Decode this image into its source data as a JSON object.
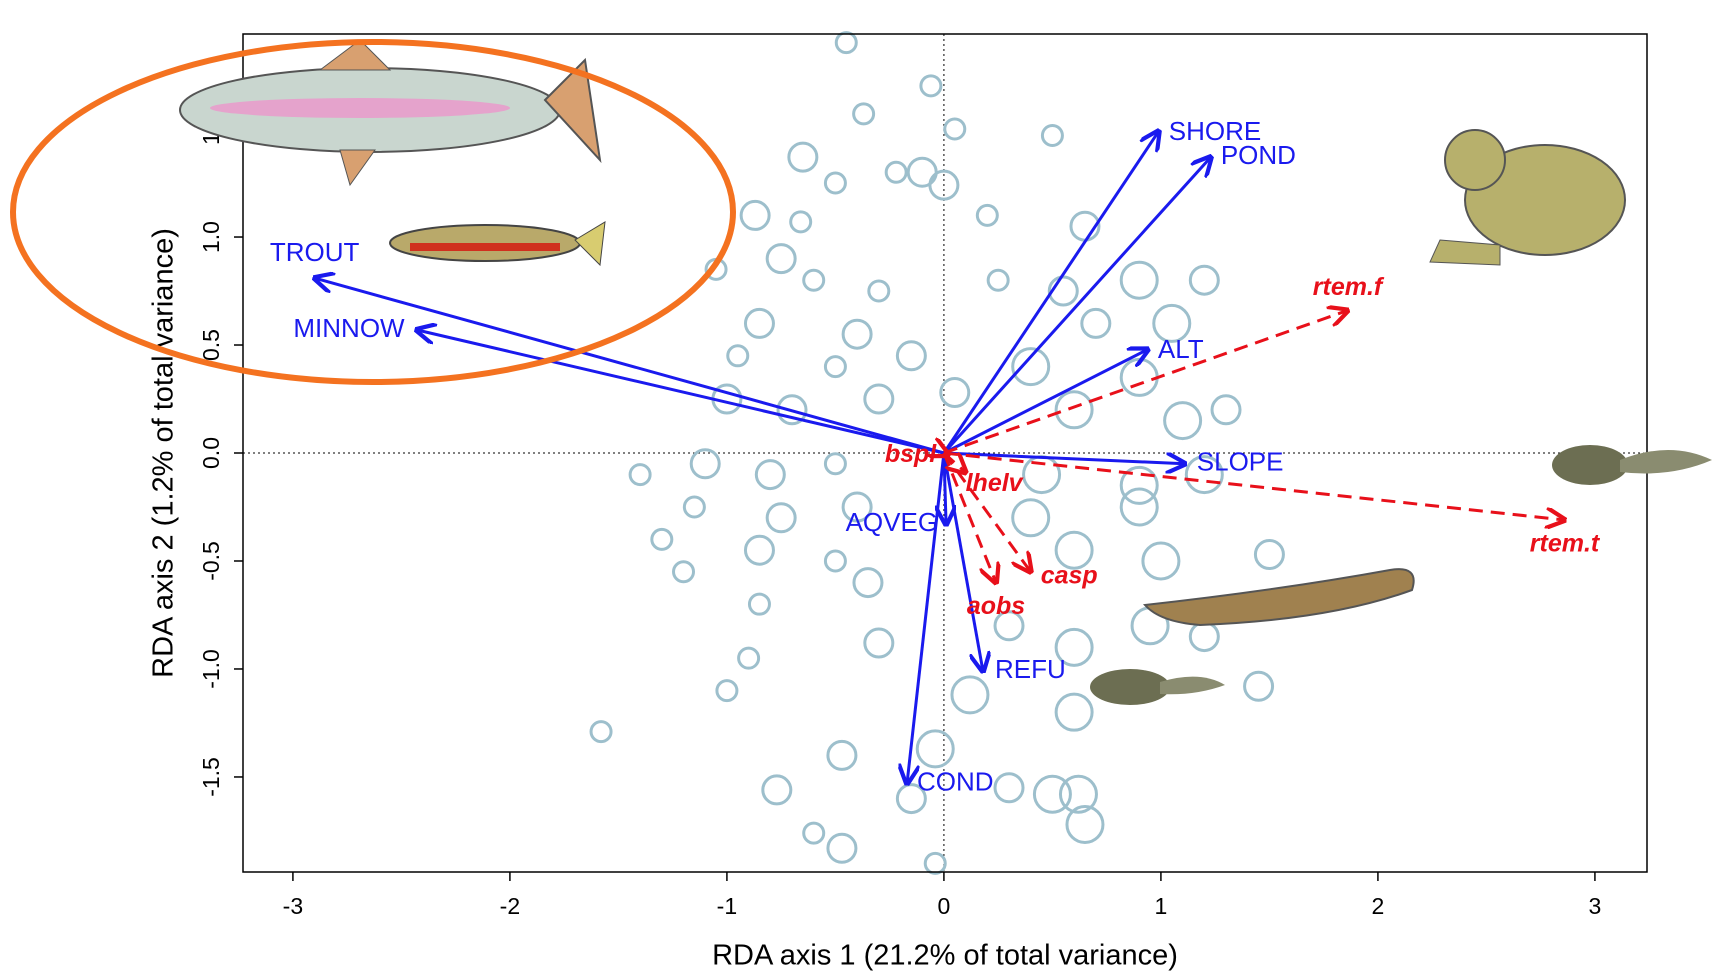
{
  "chart_data": {
    "type": "biplot",
    "x_label": "RDA axis 1 (21.2% of total variance)",
    "y_label": "RDA axis 2 (1.2% of total variance)",
    "xlim": [
      -3.23,
      3.24
    ],
    "ylim": [
      -1.94,
      1.94
    ],
    "xticks": [
      -3,
      -2,
      -1,
      0,
      1,
      2,
      3
    ],
    "yticks": [
      -1.5,
      {
        "value": -1,
        "label": "-1.0"
      },
      -0.5,
      {
        "value": 0,
        "label": "0.0"
      },
      0.5,
      {
        "value": 1,
        "label": "1.0"
      },
      1.5
    ],
    "sites": {
      "color": "#9dbfcc",
      "x": [
        -0.45,
        -0.06,
        -0.37,
        0.05,
        0.5,
        -0.65,
        -0.22,
        -0.5,
        0,
        -0.1,
        -0.66,
        -0.87,
        0.2,
        0.65,
        -0.75,
        -0.6,
        -0.3,
        0.25,
        0.55,
        0.9,
        1.2,
        -1.05,
        -0.85,
        -0.4,
        0.7,
        1.05,
        -0.95,
        -0.5,
        -0.15,
        0.4,
        0.9,
        -1.0,
        -0.7,
        -0.3,
        0.05,
        0.6,
        1.1,
        1.3,
        -1.4,
        -1.1,
        -0.8,
        -0.5,
        0.45,
        0.9,
        1.2,
        -1.15,
        -0.75,
        -0.4,
        0.4,
        0.9,
        -1.3,
        -0.85,
        -0.5,
        0.6,
        1.0,
        1.5,
        -1.2,
        -0.85,
        -0.35,
        0.3,
        0.95,
        1.2,
        -0.9,
        -0.3,
        0.6,
        1.45,
        -1.0,
        0.12,
        0.6,
        -1.58,
        -0.47,
        -0.04,
        -0.77,
        0.5,
        0.62,
        -0.6,
        -0.47,
        -0.04,
        -0.15,
        0.3,
        0.65
      ],
      "y": [
        1.9,
        1.7,
        1.57,
        1.5,
        1.47,
        1.37,
        1.3,
        1.25,
        1.24,
        1.3,
        1.07,
        1.1,
        1.1,
        1.05,
        0.9,
        0.8,
        0.75,
        0.8,
        0.75,
        0.8,
        0.8,
        0.85,
        0.6,
        0.55,
        0.6,
        0.6,
        0.45,
        0.4,
        0.45,
        0.4,
        0.35,
        0.25,
        0.2,
        0.25,
        0.28,
        0.2,
        0.15,
        0.2,
        -0.1,
        -0.05,
        -0.1,
        -0.05,
        -0.1,
        -0.15,
        -0.1,
        -0.25,
        -0.3,
        -0.25,
        -0.3,
        -0.25,
        -0.4,
        -0.45,
        -0.5,
        -0.45,
        -0.5,
        -0.47,
        -0.55,
        -0.7,
        -0.6,
        -0.8,
        -0.8,
        -0.85,
        -0.95,
        -0.88,
        -0.9,
        -1.08,
        -1.1,
        -1.12,
        -1.2,
        -1.29,
        -1.4,
        -1.37,
        -1.56,
        -1.58,
        -1.58,
        -1.76,
        -1.83,
        -1.9,
        -1.6,
        -1.55,
        -1.72
      ],
      "sizes": [
        1,
        1,
        1,
        1,
        1,
        2,
        1,
        1,
        2,
        2,
        1,
        2,
        1,
        2,
        2,
        1,
        1,
        1,
        2,
        3,
        2,
        1,
        2,
        2,
        2,
        3,
        1,
        1,
        2,
        3,
        3,
        2,
        2,
        2,
        2,
        3,
        3,
        2,
        1,
        2,
        2,
        1,
        3,
        3,
        3,
        1,
        2,
        2,
        3,
        3,
        1,
        2,
        1,
        3,
        3,
        2,
        1,
        1,
        2,
        2,
        3,
        2,
        1,
        2,
        3,
        2,
        1,
        3,
        3,
        1,
        2,
        3,
        2,
        3,
        3,
        1,
        2,
        1,
        2,
        2,
        3
      ]
    },
    "env_vectors": {
      "color": "#1a1aee",
      "names": [
        "TROUT",
        "MINNOW",
        "SHORE",
        "POND",
        "ALT",
        "SLOPE",
        "AQVEG",
        "REFU",
        "COND"
      ],
      "x": [
        -2.9,
        -2.43,
        0.99,
        1.23,
        0.94,
        1.11,
        0.01,
        0.18,
        -0.17
      ],
      "y": [
        0.81,
        0.57,
        1.49,
        1.37,
        0.48,
        -0.05,
        -0.33,
        -1.01,
        -1.53
      ]
    },
    "species_vectors": {
      "color": "#e8101a",
      "names": [
        "rtem.f",
        "rtem.t",
        "lhelv",
        "casp",
        "aobs",
        "bspl"
      ],
      "x": [
        1.86,
        2.86,
        0.1,
        0.4,
        0.24,
        0.02
      ],
      "y": [
        0.66,
        -0.31,
        -0.09,
        -0.55,
        -0.6,
        -0.01
      ]
    }
  }
}
